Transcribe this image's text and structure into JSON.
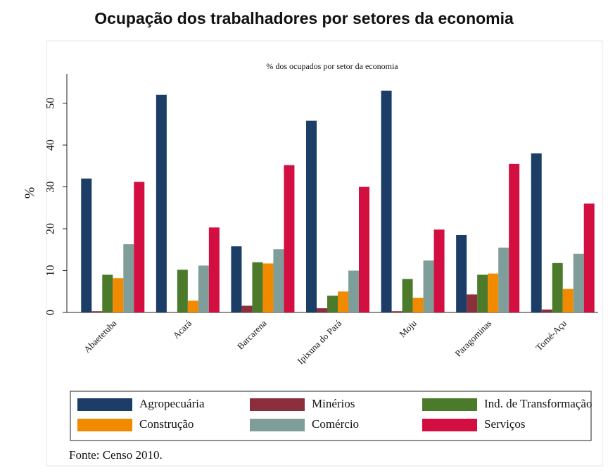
{
  "chart_data": {
    "type": "bar",
    "title": "Ocupação dos trabalhadores por setores da economia",
    "subtitle": "% dos ocupados por setor da economia",
    "y_label": "%",
    "source": "Fonte: Censo 2010.",
    "categories": [
      "Abaetetuba",
      "Acará",
      "Barcarena",
      "Ipixuna do Pará",
      "Moju",
      "Paragominas",
      "Tomé-Açu"
    ],
    "series": [
      {
        "name": "Agropecuária",
        "color": "#1b3d66",
        "values": [
          32,
          52,
          15.8,
          45.8,
          53,
          18.5,
          38
        ]
      },
      {
        "name": "Minérios",
        "color": "#8c2f3c",
        "values": [
          0.3,
          0.1,
          1.6,
          1,
          0.3,
          4.3,
          0.7
        ]
      },
      {
        "name": "Ind. de Transformação",
        "color": "#4b7a2b",
        "values": [
          9,
          10.2,
          12,
          4,
          8,
          9,
          11.8
        ]
      },
      {
        "name": "Construção",
        "color": "#f28a00",
        "values": [
          8.2,
          2.8,
          11.7,
          5,
          3.5,
          9.3,
          5.6
        ]
      },
      {
        "name": "Comércio",
        "color": "#7f9e9a",
        "values": [
          16.3,
          11.2,
          15.1,
          10,
          12.4,
          15.5,
          14
        ]
      },
      {
        "name": "Serviços",
        "color": "#d20f40",
        "values": [
          31.2,
          20.3,
          35.2,
          30,
          19.8,
          35.5,
          26
        ]
      }
    ],
    "ylim": [
      0,
      57
    ],
    "yticks": [
      0,
      10,
      20,
      30,
      40,
      50
    ]
  }
}
